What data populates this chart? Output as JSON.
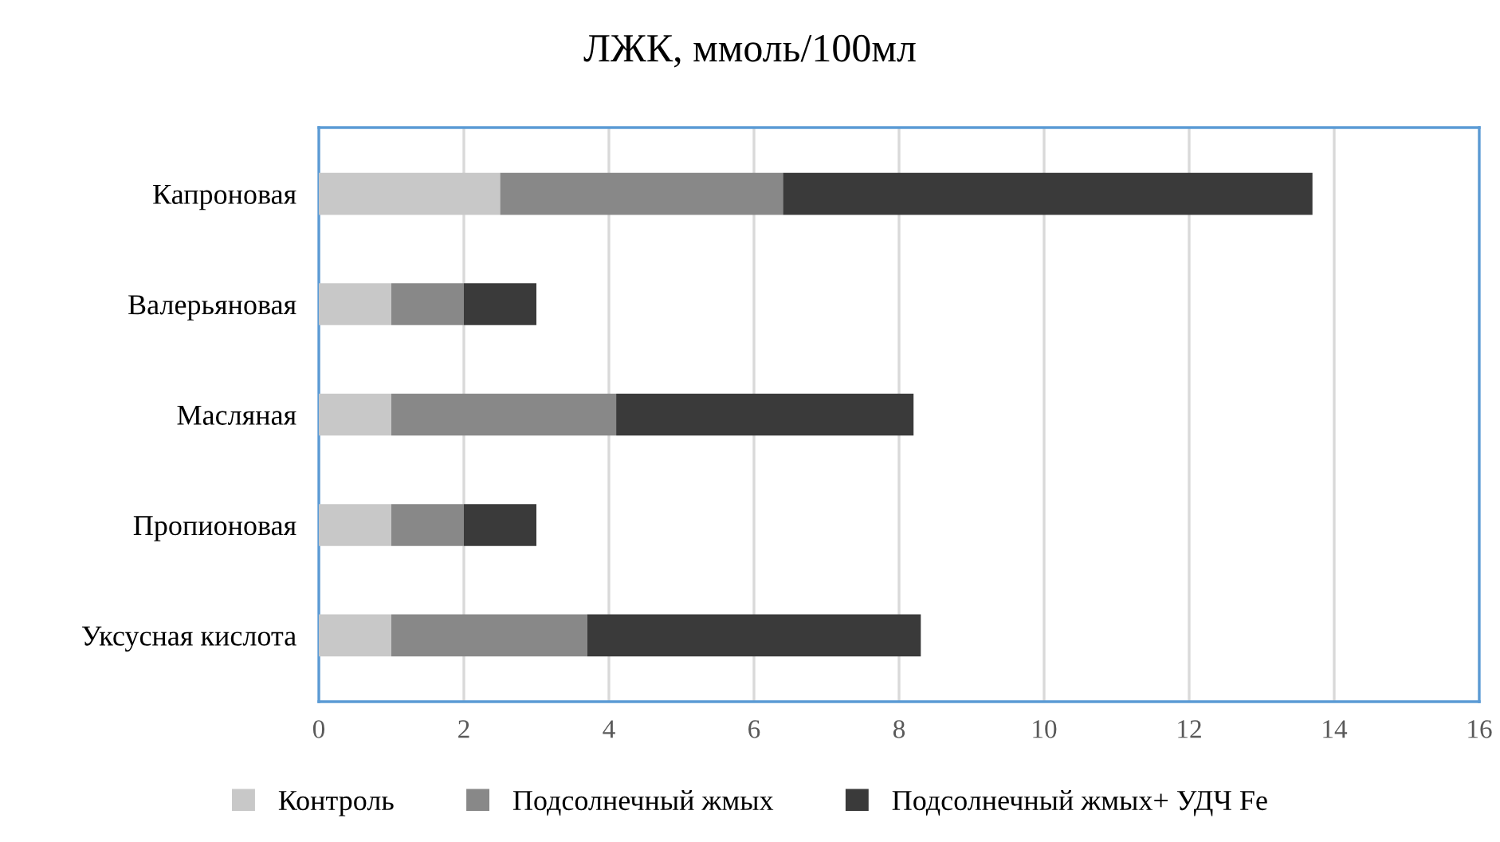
{
  "chart_data": {
    "type": "bar",
    "orientation": "horizontal",
    "stacked": true,
    "title": "ЛЖК, ммоль/100мл",
    "categories": [
      "Капроновая",
      "Валерьяновая",
      "Масляная",
      "Пропионовая",
      "Уксусная кислота"
    ],
    "series": [
      {
        "name": "Контроль",
        "color": "#c8c8c8",
        "values": [
          2.5,
          1.0,
          1.0,
          1.0,
          1.0
        ]
      },
      {
        "name": "Подсолнечный жмых",
        "color": "#888888",
        "values": [
          3.9,
          1.0,
          3.1,
          1.0,
          2.7
        ]
      },
      {
        "name": "Подсолнечный жмых+ УДЧ Fe",
        "color": "#3a3a3a",
        "values": [
          7.3,
          1.0,
          4.1,
          1.0,
          4.6
        ]
      }
    ],
    "xlim": [
      0,
      16
    ],
    "xticks": [
      0,
      2,
      4,
      6,
      8,
      10,
      12,
      14,
      16
    ],
    "grid": "x",
    "legend": "bottom"
  }
}
